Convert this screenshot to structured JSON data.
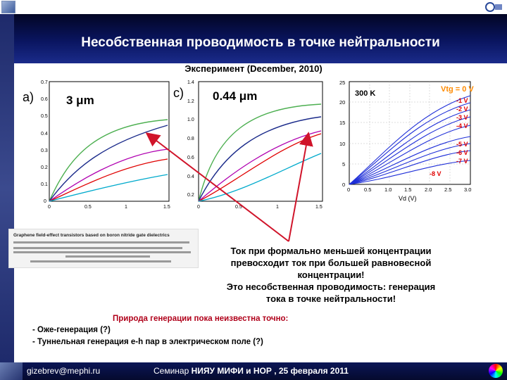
{
  "header": {
    "title": "Несобственная проводимость в точке нейтральности",
    "subtitle": "Эксперимент (December, 2010)"
  },
  "panels": {
    "a": {
      "label": "a)",
      "size_label": "3 μm",
      "yticks": [
        "0.7",
        "0.6",
        "0.5",
        "0.4",
        "0.3",
        "0.2",
        "0.1",
        "0"
      ],
      "xticks": [
        "0",
        "0.5",
        "1",
        "1.5"
      ]
    },
    "c": {
      "label": "c)",
      "size_label": "0.44 μm",
      "yticks": [
        "1.4",
        "1.2",
        "1.0",
        "0.8",
        "0.6",
        "0.4",
        "0.2"
      ],
      "xticks": [
        "0",
        "0.5",
        "1",
        "1.5"
      ]
    },
    "right": {
      "temp_label": "300 K",
      "vtg_label": "Vtg = 0 V",
      "voltage_labels": [
        "-1 V",
        "-2 V",
        "-3 V",
        "-4 V",
        "-5 V",
        "-6 V",
        "-7 V",
        "-8 V"
      ],
      "xlabel": "Vd (V)",
      "yticks": [
        "25",
        "20",
        "15",
        "10",
        "5",
        "0"
      ],
      "xticks": [
        "0",
        "0.5",
        "1.0",
        "1.5",
        "2.0",
        "2.5",
        "3.0"
      ]
    }
  },
  "paper_inset": {
    "title": "Graphene field-effect transistors based on boron nitride gate dielectrics"
  },
  "annotation": {
    "lines": [
      "Ток при формально меньшей концентрации",
      "превосходит ток при большей равновесной",
      "концентрации!",
      "Это несобственная проводимость:  генерация",
      "тока в точке нейтральности!"
    ]
  },
  "notes": {
    "nature": "Природа генерации пока неизвестна точно:",
    "bullet1": "- Оже-генерация (?)",
    "bullet2": "- Туннельная генерация e-h пар в электрическом поле (?)"
  },
  "footer": {
    "email": "gizebrev@mephi.ru",
    "seminar_prefix": "Семинар ",
    "seminar_bold": "НИЯУ МИФИ и НОР ,",
    "date": "  25 февраля  2011"
  },
  "colors": {
    "title_band": "#0a1560",
    "series_blue": "#1f2fd8",
    "arrow_red": "#d0142a",
    "label_orange": "#ff8a00",
    "label_red": "#e00000"
  }
}
